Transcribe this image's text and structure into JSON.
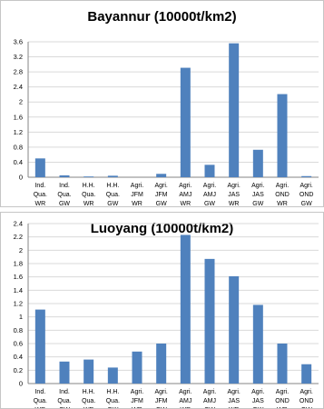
{
  "chart_data": [
    {
      "type": "bar",
      "title": "Bayannur (10000t/km2)",
      "categories": [
        [
          "Ind.",
          "Qua.",
          "WR"
        ],
        [
          "Ind.",
          "Qua.",
          "GW"
        ],
        [
          "H.H.",
          "Qua.",
          "WR"
        ],
        [
          "H.H.",
          "Qua.",
          "GW"
        ],
        [
          "Agri.",
          "JFM",
          "WR"
        ],
        [
          "Agri.",
          "JFM",
          "GW"
        ],
        [
          "Agri.",
          "AMJ",
          "WR"
        ],
        [
          "Agri.",
          "AMJ",
          "GW"
        ],
        [
          "Agri.",
          "JAS",
          "WR"
        ],
        [
          "Agri.",
          "JAS",
          "GW"
        ],
        [
          "Agri.",
          "OND",
          "WR"
        ],
        [
          "Agri.",
          "OND",
          "GW"
        ]
      ],
      "values": [
        0.5,
        0.05,
        0.02,
        0.04,
        0.0,
        0.09,
        2.91,
        0.33,
        3.56,
        0.73,
        2.21,
        0.03
      ],
      "ylim": [
        0,
        3.6
      ],
      "yticks": [
        "0",
        "0.4",
        "0.8",
        "1.2",
        "1.6",
        "2",
        "2.4",
        "2.8",
        "3.2",
        "3.6"
      ],
      "grid": true,
      "bar_color": "#4f81bd"
    },
    {
      "type": "bar",
      "title": "Luoyang (10000t/km2)",
      "categories": [
        [
          "Ind.",
          "Qua.",
          "WR"
        ],
        [
          "Ind.",
          "Qua.",
          "GW"
        ],
        [
          "H.H.",
          "Qua.",
          "WR"
        ],
        [
          "H.H.",
          "Qua.",
          "GW"
        ],
        [
          "Agri.",
          "JFM",
          "WR"
        ],
        [
          "Agri.",
          "JFM",
          "GW"
        ],
        [
          "Agri.",
          "AMJ",
          "WR"
        ],
        [
          "Agri.",
          "AMJ",
          "GW"
        ],
        [
          "Agri.",
          "JAS",
          "WR"
        ],
        [
          "Agri.",
          "JAS",
          "GW"
        ],
        [
          "Agri.",
          "OND",
          "WR"
        ],
        [
          "Agri.",
          "OND",
          "GW"
        ]
      ],
      "values": [
        1.11,
        0.33,
        0.36,
        0.24,
        0.48,
        0.6,
        2.23,
        1.87,
        1.61,
        1.18,
        0.6,
        0.29
      ],
      "ylim": [
        0,
        2.4
      ],
      "yticks": [
        "0",
        "0.2",
        "0.4",
        "0.6",
        "0.8",
        "1",
        "1.2",
        "1.4",
        "1.6",
        "1.8",
        "2",
        "2.2",
        "2.4"
      ],
      "grid": true,
      "bar_color": "#4f81bd"
    }
  ]
}
